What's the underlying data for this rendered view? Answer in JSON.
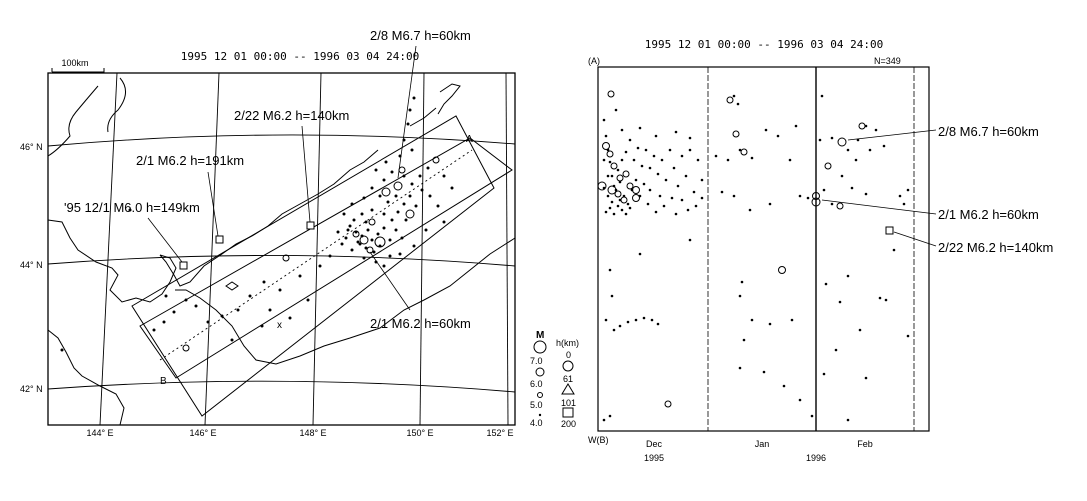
{
  "map": {
    "period": "1995 12 01 00:00 -- 1996 03 04 24:00",
    "scale_label": "100km",
    "lat_labels": [
      "46° N",
      "44° N",
      "42° N"
    ],
    "lon_labels": [
      "144° E",
      "146° E",
      "148° E",
      "150° E",
      "152° E"
    ],
    "profile_start": "A",
    "profile_end": "B",
    "center_mark": "x",
    "annotations": {
      "a1": "2/8 M6.7 h=60km",
      "a2": "2/22 M6.2 h=140km",
      "a3": "2/1 M6.2 h=191km",
      "a4": "'95 12/1 M6.0 h=149km",
      "a5": "2/1 M6.2 h=60km"
    }
  },
  "legend": {
    "mag_title": "M",
    "mags": [
      "7.0",
      "6.0",
      "5.0",
      "4.0"
    ],
    "depth_title": "h(km)",
    "depths": [
      "0",
      "61",
      "101",
      "200"
    ]
  },
  "timeplot": {
    "period": "1995 12 01 00:00 -- 1996 03 04 24:00",
    "top_label": "(A)",
    "bottom_label": "W(B)",
    "count": "N=349",
    "months": [
      "Dec",
      "Jan",
      "Feb"
    ],
    "years": [
      "1995",
      "1996"
    ],
    "annotations": {
      "t1": "2/8 M6.7 h=60km",
      "t2": "2/1 M6.2 h=60km",
      "t3": "2/22 M6.2 h=140km"
    }
  }
}
